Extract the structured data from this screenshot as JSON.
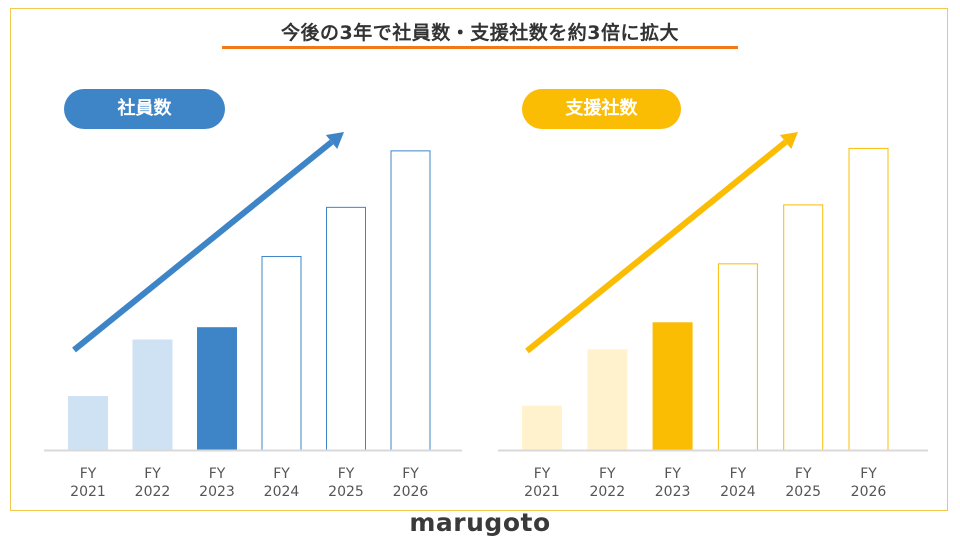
{
  "title": "今後の3年で社員数・支援社数を約3倍に拡大",
  "logo": "marugoto",
  "chart_data": [
    {
      "type": "bar",
      "title": "社員数",
      "categories": [
        "FY\n2021",
        "FY\n2022",
        "FY\n2023",
        "FY\n2024",
        "FY\n2025",
        "FY\n2026"
      ],
      "values": [
        2.2,
        4.5,
        5.0,
        7.9,
        9.9,
        12.2
      ],
      "ylim": [
        0,
        12.5
      ],
      "colors": {
        "actual_past": "#cfe2f3",
        "actual_current": "#3d85c6",
        "forecast_outline": "#3d85c6",
        "accent": "#3d85c6"
      },
      "grid": false,
      "trend_arrow": true
    },
    {
      "type": "bar",
      "title": "支援社数",
      "categories": [
        "FY\n2021",
        "FY\n2022",
        "FY\n2023",
        "FY\n2024",
        "FY\n2025",
        "FY\n2026"
      ],
      "values": [
        1.8,
        4.1,
        5.2,
        7.6,
        10.0,
        12.3
      ],
      "ylim": [
        0,
        12.5
      ],
      "colors": {
        "actual_past": "#fff2cc",
        "actual_current": "#fbbc04",
        "forecast_outline": "#fbbc04",
        "accent": "#fbbc04"
      },
      "grid": false,
      "trend_arrow": true
    }
  ]
}
